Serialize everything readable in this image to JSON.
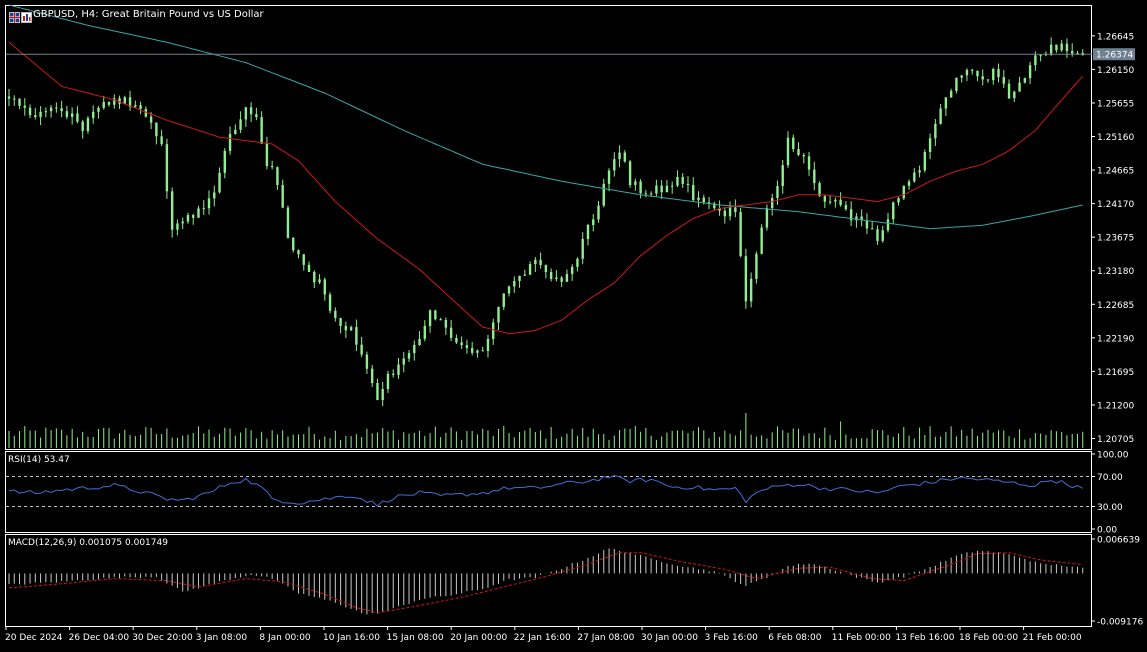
{
  "header": {
    "symbol_line": "GBPUSD, H4:  Great Britain Pound vs US Dollar",
    "icons": [
      "flag-icon",
      "chart-window-icon"
    ]
  },
  "colors": {
    "background": "#000000",
    "frame": "#ffffff",
    "candle": "#90ee90",
    "ma_fast": "#d01818",
    "ma_slow": "#3aa6a6",
    "rsi_line": "#3f6fd6",
    "macd_hist": "#c8c8c8",
    "macd_signal": "#d01818",
    "price_line": "#708090",
    "price_tag_bg": "#708090"
  },
  "main_panel": {
    "current_price": "1.26374",
    "price_ticks": [
      "1.26645",
      "1.26150",
      "1.25655",
      "1.25160",
      "1.24665",
      "1.24170",
      "1.23675",
      "1.23180",
      "1.22685",
      "1.22190",
      "1.21695",
      "1.21200",
      "1.20705"
    ]
  },
  "rsi_panel": {
    "label": "RSI(14) 53.47",
    "ticks": [
      "100.00",
      "70.00",
      "30.00",
      "0.00"
    ]
  },
  "macd_panel": {
    "label": "MACD(12,26,9) 0.001075 0.001749",
    "ticks": [
      "0.006639",
      "-0.009176"
    ]
  },
  "time_axis": {
    "labels": [
      "20 Dec 2024",
      "26 Dec 04:00",
      "30 Dec 20:00",
      "3 Jan 08:00",
      "8 Jan 00:00",
      "10 Jan 16:00",
      "15 Jan 08:00",
      "20 Jan 00:00",
      "22 Jan 16:00",
      "27 Jan 08:00",
      "30 Jan 00:00",
      "3 Feb 16:00",
      "6 Feb 08:00",
      "11 Feb 00:00",
      "13 Feb 16:00",
      "18 Feb 00:00",
      "21 Feb 00:00"
    ]
  },
  "chart_data": {
    "type": "candlestick",
    "symbol": "GBPUSD",
    "timeframe": "H4",
    "ylim": [
      1.2055,
      1.271
    ],
    "close_path": [
      [
        0,
        1.2575
      ],
      [
        3,
        1.256
      ],
      [
        6,
        1.2545
      ],
      [
        10,
        1.256
      ],
      [
        14,
        1.253
      ],
      [
        17,
        1.2555
      ],
      [
        20,
        1.2575
      ],
      [
        24,
        1.256
      ],
      [
        27,
        1.2535
      ],
      [
        29,
        1.25
      ],
      [
        31,
        1.238
      ],
      [
        33,
        1.239
      ],
      [
        36,
        1.241
      ],
      [
        39,
        1.243
      ],
      [
        42,
        1.252
      ],
      [
        45,
        1.256
      ],
      [
        47,
        1.254
      ],
      [
        49,
        1.248
      ],
      [
        51,
        1.245
      ],
      [
        53,
        1.237
      ],
      [
        56,
        1.232
      ],
      [
        59,
        1.23
      ],
      [
        62,
        1.225
      ],
      [
        65,
        1.223
      ],
      [
        68,
        1.218
      ],
      [
        70,
        1.2125
      ],
      [
        72,
        1.216
      ],
      [
        75,
        1.219
      ],
      [
        78,
        1.221
      ],
      [
        80,
        1.226
      ],
      [
        83,
        1.223
      ],
      [
        86,
        1.221
      ],
      [
        88,
        1.219
      ],
      [
        91,
        1.221
      ],
      [
        94,
        1.229
      ],
      [
        97,
        1.231
      ],
      [
        100,
        1.234
      ],
      [
        102,
        1.231
      ],
      [
        105,
        1.23
      ],
      [
        108,
        1.234
      ],
      [
        111,
        1.24
      ],
      [
        114,
        1.246
      ],
      [
        116,
        1.25
      ],
      [
        118,
        1.245
      ],
      [
        121,
        1.243
      ],
      [
        124,
        1.244
      ],
      [
        127,
        1.245
      ],
      [
        130,
        1.243
      ],
      [
        133,
        1.241
      ],
      [
        136,
        1.24
      ],
      [
        138,
        1.241
      ],
      [
        140,
        1.227
      ],
      [
        142,
        1.235
      ],
      [
        144,
        1.241
      ],
      [
        146,
        1.245
      ],
      [
        148,
        1.251
      ],
      [
        151,
        1.248
      ],
      [
        154,
        1.243
      ],
      [
        157,
        1.242
      ],
      [
        160,
        1.24
      ],
      [
        163,
        1.238
      ],
      [
        165,
        1.237
      ],
      [
        167,
        1.24
      ],
      [
        170,
        1.244
      ],
      [
        173,
        1.247
      ],
      [
        176,
        1.254
      ],
      [
        179,
        1.259
      ],
      [
        182,
        1.261
      ],
      [
        185,
        1.26
      ],
      [
        187,
        1.261
      ],
      [
        190,
        1.258
      ],
      [
        193,
        1.261
      ],
      [
        196,
        1.264
      ],
      [
        199,
        1.265
      ],
      [
        202,
        1.264
      ],
      [
        204,
        1.2637
      ]
    ],
    "ma_fast_path": [
      [
        0,
        1.2655
      ],
      [
        10,
        1.259
      ],
      [
        20,
        1.257
      ],
      [
        30,
        1.254
      ],
      [
        40,
        1.2515
      ],
      [
        50,
        1.2505
      ],
      [
        55,
        1.248
      ],
      [
        62,
        1.242
      ],
      [
        70,
        1.2365
      ],
      [
        78,
        1.232
      ],
      [
        85,
        1.227
      ],
      [
        90,
        1.2235
      ],
      [
        95,
        1.2225
      ],
      [
        100,
        1.223
      ],
      [
        105,
        1.2245
      ],
      [
        110,
        1.2275
      ],
      [
        115,
        1.23
      ],
      [
        120,
        1.234
      ],
      [
        125,
        1.237
      ],
      [
        130,
        1.2395
      ],
      [
        135,
        1.241
      ],
      [
        140,
        1.2415
      ],
      [
        145,
        1.242
      ],
      [
        150,
        1.243
      ],
      [
        155,
        1.243
      ],
      [
        160,
        1.2425
      ],
      [
        165,
        1.242
      ],
      [
        170,
        1.243
      ],
      [
        175,
        1.245
      ],
      [
        180,
        1.2465
      ],
      [
        185,
        1.2475
      ],
      [
        190,
        1.2495
      ],
      [
        195,
        1.2525
      ],
      [
        200,
        1.257
      ],
      [
        204,
        1.2605
      ]
    ],
    "ma_slow_path": [
      [
        0,
        1.271
      ],
      [
        15,
        1.268
      ],
      [
        30,
        1.2655
      ],
      [
        45,
        1.2625
      ],
      [
        60,
        1.258
      ],
      [
        75,
        1.2525
      ],
      [
        90,
        1.2475
      ],
      [
        105,
        1.245
      ],
      [
        120,
        1.243
      ],
      [
        135,
        1.2415
      ],
      [
        150,
        1.2405
      ],
      [
        165,
        1.239
      ],
      [
        175,
        1.238
      ],
      [
        185,
        1.2385
      ],
      [
        195,
        1.24
      ],
      [
        204,
        1.2415
      ]
    ],
    "rsi": {
      "period": 14,
      "last": 53.47,
      "levels": [
        70,
        30
      ],
      "ylim": [
        0,
        100
      ],
      "path": [
        [
          0,
          50
        ],
        [
          5,
          48
        ],
        [
          10,
          52
        ],
        [
          15,
          55
        ],
        [
          20,
          58
        ],
        [
          25,
          50
        ],
        [
          30,
          40
        ],
        [
          33,
          38
        ],
        [
          38,
          48
        ],
        [
          42,
          62
        ],
        [
          45,
          66
        ],
        [
          48,
          55
        ],
        [
          50,
          40
        ],
        [
          55,
          35
        ],
        [
          60,
          40
        ],
        [
          65,
          45
        ],
        [
          68,
          38
        ],
        [
          70,
          32
        ],
        [
          73,
          42
        ],
        [
          78,
          48
        ],
        [
          82,
          44
        ],
        [
          86,
          46
        ],
        [
          90,
          48
        ],
        [
          95,
          55
        ],
        [
          100,
          54
        ],
        [
          105,
          60
        ],
        [
          110,
          64
        ],
        [
          114,
          70
        ],
        [
          118,
          64
        ],
        [
          122,
          66
        ],
        [
          126,
          56
        ],
        [
          130,
          56
        ],
        [
          134,
          52
        ],
        [
          138,
          54
        ],
        [
          140,
          38
        ],
        [
          143,
          52
        ],
        [
          147,
          58
        ],
        [
          150,
          60
        ],
        [
          155,
          54
        ],
        [
          160,
          52
        ],
        [
          165,
          48
        ],
        [
          170,
          58
        ],
        [
          175,
          62
        ],
        [
          180,
          68
        ],
        [
          185,
          66
        ],
        [
          190,
          62
        ],
        [
          195,
          58
        ],
        [
          198,
          66
        ],
        [
          201,
          60
        ],
        [
          204,
          53.47
        ]
      ]
    },
    "macd": {
      "fast": 12,
      "slow": 26,
      "signal": 9,
      "last_macd": 0.001075,
      "last_signal": 0.001749,
      "ylim": [
        -0.009176,
        0.006639
      ],
      "hist_path": [
        [
          0,
          -0.0022
        ],
        [
          10,
          -0.0016
        ],
        [
          20,
          -0.0008
        ],
        [
          28,
          -0.0006
        ],
        [
          33,
          -0.0036
        ],
        [
          40,
          -0.0016
        ],
        [
          46,
          -0.0002
        ],
        [
          50,
          -0.001
        ],
        [
          55,
          -0.0038
        ],
        [
          62,
          -0.0056
        ],
        [
          68,
          -0.008
        ],
        [
          72,
          -0.0072
        ],
        [
          78,
          -0.005
        ],
        [
          84,
          -0.0042
        ],
        [
          90,
          -0.003
        ],
        [
          95,
          -0.0012
        ],
        [
          100,
          -0.0008
        ],
        [
          105,
          0.001
        ],
        [
          110,
          0.003
        ],
        [
          114,
          0.0048
        ],
        [
          118,
          0.004
        ],
        [
          122,
          0.0028
        ],
        [
          128,
          0.0014
        ],
        [
          134,
          0.0004
        ],
        [
          140,
          -0.0024
        ],
        [
          144,
          -0.0008
        ],
        [
          148,
          0.0014
        ],
        [
          152,
          0.002
        ],
        [
          156,
          0.001
        ],
        [
          160,
          -0.0004
        ],
        [
          165,
          -0.0018
        ],
        [
          170,
          -0.0006
        ],
        [
          175,
          0.0012
        ],
        [
          180,
          0.0034
        ],
        [
          184,
          0.0044
        ],
        [
          188,
          0.004
        ],
        [
          192,
          0.0032
        ],
        [
          196,
          0.0018
        ],
        [
          200,
          0.0016
        ],
        [
          204,
          0.001
        ]
      ],
      "signal_path": [
        [
          0,
          -0.0028
        ],
        [
          10,
          -0.002
        ],
        [
          20,
          -0.001
        ],
        [
          30,
          -0.0014
        ],
        [
          36,
          -0.0026
        ],
        [
          45,
          -0.001
        ],
        [
          52,
          -0.0016
        ],
        [
          60,
          -0.004
        ],
        [
          66,
          -0.0066
        ],
        [
          70,
          -0.0076
        ],
        [
          78,
          -0.0062
        ],
        [
          86,
          -0.0046
        ],
        [
          94,
          -0.0026
        ],
        [
          102,
          -0.0006
        ],
        [
          110,
          0.0018
        ],
        [
          116,
          0.004
        ],
        [
          120,
          0.004
        ],
        [
          128,
          0.0022
        ],
        [
          136,
          0.0008
        ],
        [
          142,
          -0.001
        ],
        [
          150,
          0.001
        ],
        [
          156,
          0.0012
        ],
        [
          164,
          -0.001
        ],
        [
          170,
          -0.0014
        ],
        [
          178,
          0.0014
        ],
        [
          184,
          0.0038
        ],
        [
          190,
          0.004
        ],
        [
          196,
          0.0026
        ],
        [
          204,
          0.0017
        ]
      ]
    }
  }
}
